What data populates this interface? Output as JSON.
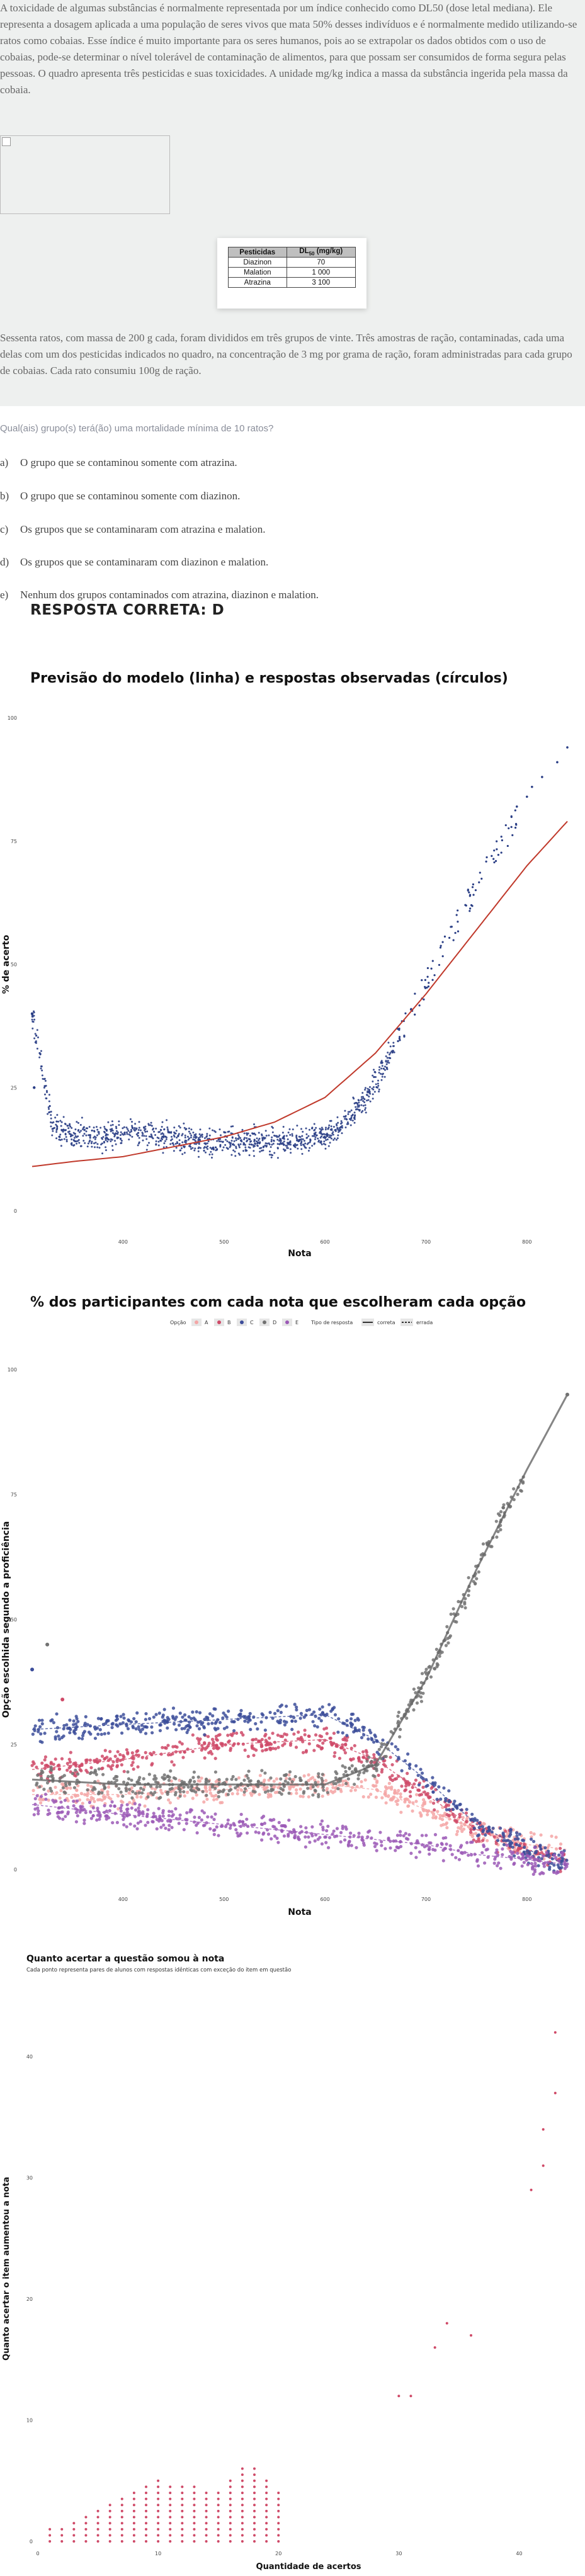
{
  "intro": {
    "paragraph1": "A toxicidade de algumas substâncias é normalmente representada por um índice conhecido como DL50 (dose letal mediana). Ele representa a dosagem aplicada a uma população de seres vivos que mata 50% desses indivíduos e é normalmente medido utilizando-se ratos como cobaias. Esse índice é muito importante para os seres humanos, pois ao se extrapolar os dados obtidos com o uso de cobaias, pode-se determinar o nível tolerável de contaminação de alimentos, para que possam ser consumidos de forma segura pelas pessoas. O quadro apresenta três pesticidas e suas toxicidades. A unidade mg/kg indica a massa da substância ingerida pela massa da cobaia.",
    "paragraph2": "Sessenta ratos, com massa de 200 g cada, foram divididos em três grupos de vinte. Três amostras de ração, contaminadas, cada uma delas com um dos pesticidas indicados no quadro, na concentração de 3 mg por grama de ração, foram administradas para cada grupo de cobaias. Cada rato consumiu 100g de ração."
  },
  "pesticide_table": {
    "header_col1": "Pesticidas",
    "header_col2_main": "DL",
    "header_col2_sub": "50",
    "header_col2_unit": " (mg/kg)",
    "rows": [
      {
        "name": "Diazinon",
        "value": "70"
      },
      {
        "name": "Malation",
        "value": "1 000"
      },
      {
        "name": "Atrazina",
        "value": "3 100"
      }
    ]
  },
  "question": "Qual(ais) grupo(s) terá(ão) uma mortalidade mínima de 10 ratos?",
  "options": [
    {
      "letter": "a)",
      "text": "O grupo que se contaminou somente com atrazina."
    },
    {
      "letter": "b)",
      "text": "O grupo que se contaminou somente com diazinon."
    },
    {
      "letter": "c)",
      "text": "Os grupos que se contaminaram com atrazina e malation."
    },
    {
      "letter": "d)",
      "text": "Os grupos que se contaminaram com diazinon e malation."
    },
    {
      "letter": "e)",
      "text": "Nenhum dos grupos contaminados com atrazina, diazinon e malation."
    }
  ],
  "answer": "RESPOSTA CORRETA: D",
  "chart_data": [
    {
      "type": "scatter",
      "title": "Previsão do modelo (linha) e respostas observadas (círculos)",
      "xlabel": "Nota",
      "ylabel": "% de acerto",
      "xlim": [
        300,
        850
      ],
      "ylim": [
        0,
        100
      ],
      "xticks": [
        400,
        500,
        600,
        700,
        800
      ],
      "yticks": [
        0,
        25,
        50,
        75,
        100
      ],
      "line_color": "#c0392b",
      "point_color": "#2b3f86",
      "series": [
        {
          "kind": "observed",
          "x": [
            310,
            330,
            350,
            370,
            390,
            410,
            430,
            450,
            470,
            490,
            510,
            530,
            550,
            570,
            590,
            600,
            610,
            620,
            630,
            640,
            650,
            660,
            670,
            680,
            690,
            700,
            710,
            720,
            730,
            740,
            750,
            760,
            770,
            780,
            790,
            800,
            810,
            820,
            830,
            840
          ],
          "y": [
            40,
            17,
            16,
            15,
            15,
            16,
            15,
            15,
            14,
            14,
            14,
            14,
            14,
            14,
            15,
            15,
            16,
            18,
            20,
            23,
            26,
            30,
            34,
            38,
            42,
            46,
            50,
            55,
            58,
            62,
            66,
            70,
            73,
            76,
            80,
            83,
            85,
            88,
            91,
            94
          ]
        },
        {
          "kind": "model",
          "x": [
            310,
            350,
            400,
            450,
            500,
            550,
            600,
            650,
            700,
            750,
            800,
            840
          ],
          "y": [
            9,
            10,
            11,
            13,
            15,
            18,
            23,
            32,
            44,
            57,
            70,
            79
          ]
        }
      ]
    },
    {
      "type": "scatter",
      "title": "% dos participantes com cada nota que escolheram cada opção",
      "xlabel": "Nota",
      "ylabel": "Opção escolhida segundo a proficiência",
      "xlim": [
        300,
        850
      ],
      "ylim": [
        0,
        100
      ],
      "xticks": [
        400,
        500,
        600,
        700,
        800
      ],
      "yticks": [
        0,
        25,
        50,
        75,
        100
      ],
      "legend_title": "Opção",
      "legend_type_title": "Tipo de resposta",
      "legend_types": [
        "correta",
        "errada"
      ],
      "series": [
        {
          "name": "A",
          "color": "#f4a6a6",
          "x": [
            310,
            400,
            500,
            600,
            650,
            700,
            750,
            800,
            840
          ],
          "y": [
            15,
            15,
            16,
            17,
            16,
            12,
            8,
            5,
            4
          ]
        },
        {
          "name": "B",
          "color": "#cf4a68",
          "x": [
            310,
            400,
            500,
            600,
            650,
            700,
            750,
            800,
            840
          ],
          "y": [
            20,
            22,
            25,
            26,
            22,
            15,
            8,
            4,
            2
          ]
        },
        {
          "name": "C",
          "color": "#3c4d9a",
          "x": [
            310,
            400,
            500,
            600,
            650,
            700,
            750,
            800,
            840
          ],
          "y": [
            28,
            29,
            30,
            31,
            26,
            18,
            9,
            4,
            1
          ]
        },
        {
          "name": "D",
          "color": "#727272",
          "x": [
            310,
            400,
            500,
            600,
            650,
            700,
            750,
            800,
            840
          ],
          "y": [
            18,
            17,
            17,
            17,
            21,
            38,
            60,
            80,
            95
          ]
        },
        {
          "name": "E",
          "color": "#9b59b6",
          "x": [
            310,
            400,
            500,
            600,
            650,
            700,
            750,
            800,
            840
          ],
          "y": [
            13,
            11,
            9,
            7,
            6,
            5,
            3,
            2,
            1
          ]
        }
      ]
    },
    {
      "type": "scatter",
      "title": "Quanto acertar a questão somou à nota",
      "subtitle": "Cada ponto representa pares de alunos com respostas idênticas com exceção do item em questão",
      "xlabel": "Quantidade de acertos",
      "ylabel": "Quanto acertar o item aumentou a nota",
      "xlim": [
        0,
        45
      ],
      "ylim": [
        0,
        45
      ],
      "xticks": [
        0,
        10,
        20,
        30,
        40
      ],
      "yticks": [
        0,
        10,
        20,
        30,
        40
      ],
      "point_color": "#cf4a68",
      "series": [
        {
          "x": [
            1,
            2,
            3,
            4,
            5,
            6,
            7,
            8,
            9,
            10,
            11,
            12,
            13,
            14,
            15,
            16,
            17,
            18,
            19,
            20,
            30,
            31,
            33,
            34,
            36,
            41,
            42,
            42,
            43,
            43
          ],
          "y": [
            1,
            1,
            1.5,
            2,
            2.5,
            3,
            3.5,
            4,
            4.5,
            5,
            4.5,
            4.5,
            4.5,
            4,
            4,
            5,
            6,
            6,
            5,
            4,
            12,
            12,
            16,
            18,
            17,
            29,
            31,
            34,
            37,
            42
          ]
        }
      ]
    }
  ]
}
